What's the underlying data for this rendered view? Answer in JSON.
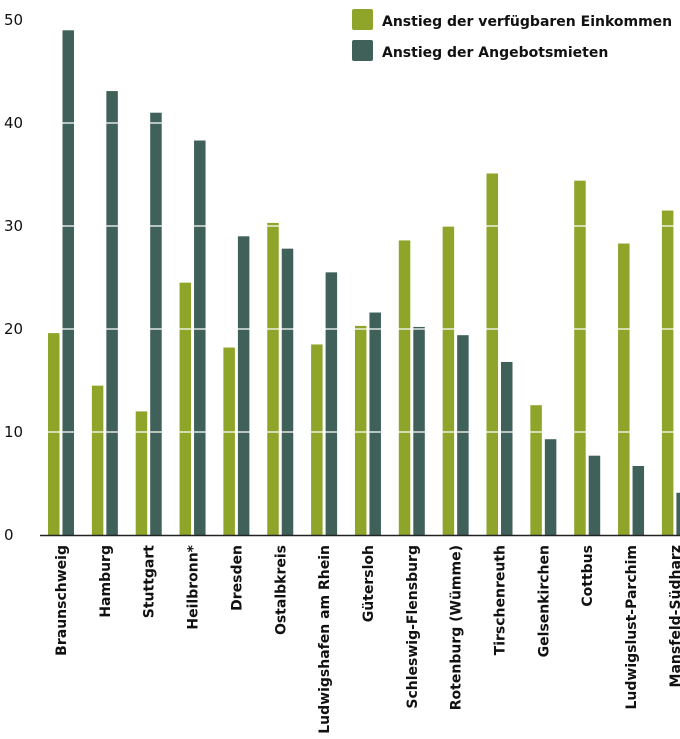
{
  "chart_data": {
    "type": "bar",
    "categories": [
      "Braunschweig",
      "Hamburg",
      "Stuttgart",
      "Heilbronn*",
      "Dresden",
      "Ostalbkreis",
      "Ludwigshafen am Rhein",
      "Gütersloh",
      "Schleswig-Flensburg",
      "Rotenburg (Wümme)",
      "Tirschenreuth",
      "Gelsenkirchen",
      "Cottbus",
      "Ludwigslust-Parchim",
      "Mansfeld-Südharz"
    ],
    "series": [
      {
        "name": "Anstieg der verfügbaren Einkommen",
        "color": "#8ea52a",
        "values": [
          19.6,
          14.5,
          12.0,
          24.5,
          18.2,
          30.3,
          18.5,
          20.3,
          28.6,
          30.0,
          35.1,
          12.6,
          34.4,
          28.3,
          31.5
        ]
      },
      {
        "name": "Anstieg der Angebotsmieten",
        "color": "#3f6159",
        "values": [
          49.0,
          43.1,
          41.0,
          38.3,
          29.0,
          27.8,
          25.5,
          21.6,
          20.2,
          19.4,
          16.8,
          9.3,
          7.7,
          6.7,
          4.1
        ]
      }
    ],
    "yticks": [
      0,
      10,
      20,
      30,
      40,
      50
    ],
    "ylim": [
      0,
      50
    ],
    "grid": "white lines across bars",
    "legend_position": "top-right"
  }
}
